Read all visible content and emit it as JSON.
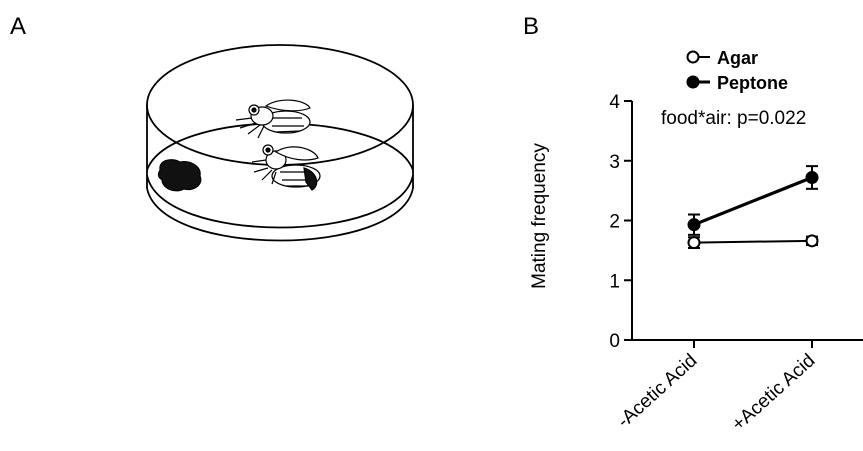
{
  "panels": {
    "a_label": "A",
    "b_label": "B"
  },
  "chart_data": {
    "type": "line",
    "categories": [
      "-Acetic Acid",
      "+Acetic Acid"
    ],
    "series": [
      {
        "name": "Agar",
        "marker": "open-circle",
        "values": [
          1.63,
          1.66
        ],
        "errors": [
          0.09,
          0.07
        ]
      },
      {
        "name": "Peptone",
        "marker": "filled-circle",
        "values": [
          1.93,
          2.72
        ],
        "errors": [
          0.17,
          0.19
        ]
      }
    ],
    "xlabel": "",
    "ylabel": "Mating frequency",
    "ylim": [
      0,
      4
    ],
    "yticks": [
      0,
      1,
      2,
      3,
      4
    ],
    "annotation": "food*air: p=0.022",
    "legend_position": "top-left",
    "grid": false
  }
}
